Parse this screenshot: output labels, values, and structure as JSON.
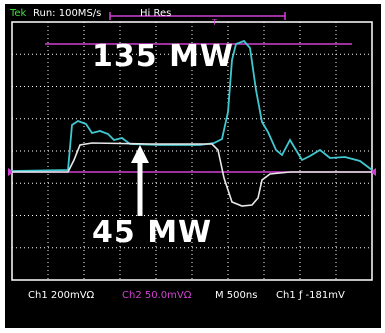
{
  "status": {
    "trigger": "Tek",
    "run": "Run: 100MS/s",
    "mode": "Hi Res",
    "trigger_marker": "T"
  },
  "annotations": {
    "peak": "135 MW",
    "base": "45 MW"
  },
  "footer": {
    "ch1": "Ch1  200mVΩ",
    "ch2": "Ch2  50.0mVΩ",
    "time": "M 500ns",
    "trigger": "Ch1  ƒ  -181mV"
  }
}
